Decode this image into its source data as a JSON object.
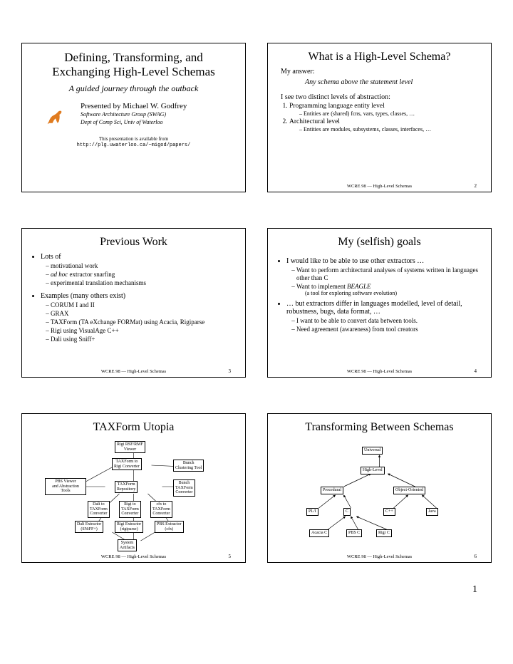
{
  "page_number": "1",
  "footer_text": "WCRE 98 — High-Level Schemas",
  "slide1": {
    "title_l1": "Defining, Transforming, and",
    "title_l2": "Exchanging High-Level Schemas",
    "subtitle": "A guided journey through the outback",
    "presented_by": "Presented by Michael W. Godfrey",
    "aff1": "Software Architecture Group (SWAG)",
    "aff2": "Dept of Comp Sci, Univ of Waterloo",
    "avail1": "This presentation is available from",
    "avail2": "http://plg.uwaterloo.ca/~migod/papers/"
  },
  "slide2": {
    "title": "What is a High-Level Schema?",
    "my_answer_label": "My answer:",
    "my_answer": "Any schema above the statement level",
    "levels_intro": "I see two distinct levels of abstraction:",
    "l1": "Programming language entity level",
    "l1a": "Entities are (shared) fcns, vars, types, classes, …",
    "l2": "Architectural level",
    "l2a": "Entities are modules, subsystems, classes, interfaces, …",
    "pgnum": "2"
  },
  "slide3": {
    "title": "Previous Work",
    "b1": "Lots of",
    "b1a": "motivational work",
    "b1b_pre": "ad hoc",
    "b1b_post": " extractor snarfing",
    "b1c": "experimental translation mechanisms",
    "b2": "Examples (many others exist)",
    "b2a": "CORUM I and II",
    "b2b": "GRAX",
    "b2c": "TAXForm (TA eXchange FORMat) using Acacia, Rigiparse",
    "b2d": "Rigi using VisualAge C++",
    "b2e": "Dali using Sniff+",
    "pgnum": "3"
  },
  "slide4": {
    "title": "My (selfish) goals",
    "b1": "I would like to be able to use other extractors …",
    "b1a": "Want to perform architectural analyses of systems written in languages other than C",
    "b1b_pre": "Want to implement ",
    "b1b_em": "BEAGLE",
    "b1c": "(a tool for exploring software evolution)",
    "b2": "… but extractors differ in languages modelled, level of detail, robustness, bugs, data format, …",
    "b2a": "I want to be able to convert data between tools.",
    "b2b": "Need agreement (awareness) from tool creators",
    "pgnum": "4"
  },
  "slide5": {
    "title": "TAXForm Utopia",
    "nodes": {
      "n_rbf": "Rigi RSF/RMF\nViewer",
      "n_t2r": "TAXForm to\nRigi Converter",
      "n_bunch": "Bunch\nClustering Tool",
      "n_pbs": "PBS Viewer\nand Abstraction\nTools",
      "n_repo": "TAXForm\nRepository",
      "n_bconv": "Bunch\nTAXForm\nConverter",
      "n_dali": "Dali to\nTAXForm\nConverter",
      "n_rigi": "Rigi to\nTAXForm\nConverter",
      "n_cfx": "cfx to\nTAXForm\nConverter",
      "n_dext": "Dali Extractor\n(SNiFF+)",
      "n_rext": "Rigi Extractor\n(rigiparse)",
      "n_pext": "PBS Extractor\n(cfx)",
      "n_sys": "System\nArtifacts"
    },
    "pgnum": "5"
  },
  "slide6": {
    "title": "Transforming Between Schemas",
    "nodes": {
      "universal": "Universal",
      "highlevel": "High-Level",
      "procedural": "Procedural",
      "oo": "Object-Oriented",
      "pli": "PL/I",
      "c": "C",
      "cpp": "C++",
      "java": "Java",
      "acacia": "Acacia C",
      "pbsc": "PBS C",
      "rigic": "Rigi C"
    },
    "pgnum": "6"
  }
}
